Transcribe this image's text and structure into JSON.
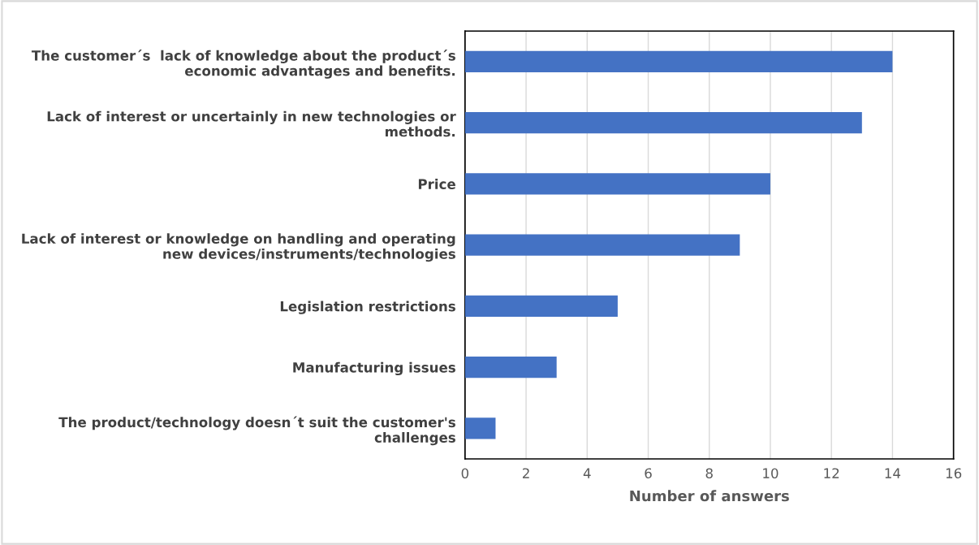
{
  "chart_data": {
    "type": "bar",
    "orientation": "horizontal",
    "xlabel": "Number of answers",
    "categories": [
      "The customer´s  lack of knowledge about the product´s\neconomic advantages and benefits.",
      "Lack of interest or uncertainly in new technologies or\nmethods.",
      "Price",
      "Lack of interest or knowledge on handling and operating\nnew devices/instruments/technologies",
      "Legislation restrictions",
      "Manufacturing issues",
      "The product/technology doesn´t suit the customer's\nchallenges"
    ],
    "values": [
      14,
      13,
      10,
      9,
      5,
      3,
      1
    ],
    "color": "#4472c4",
    "xlim": [
      0,
      16
    ],
    "xticks": [
      0,
      2,
      4,
      6,
      8,
      10,
      12,
      14,
      16
    ],
    "grid": "x"
  }
}
